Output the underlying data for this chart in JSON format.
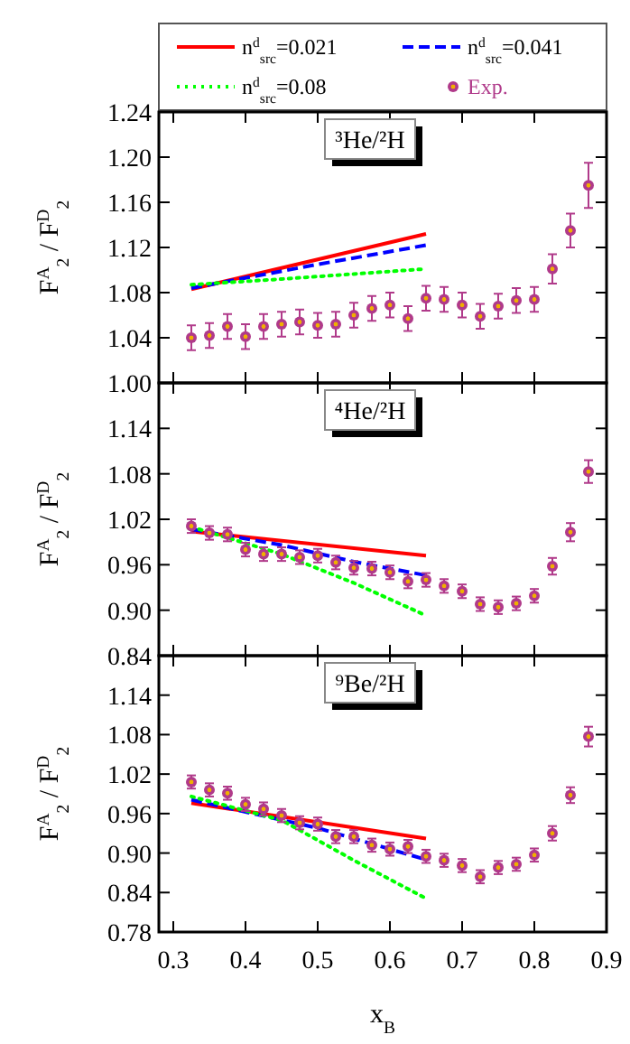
{
  "chart_data": [
    {
      "type": "line",
      "ylabel": "F$^{A}$$_{2}$ / F$^{D}$$_{2}$",
      "annotations": [
        "³He/²H"
      ],
      "xlim": [
        0.28,
        0.9
      ],
      "xticks": [
        0.3,
        0.4,
        0.5,
        0.6,
        0.7,
        0.8,
        0.9
      ],
      "ylim": [
        1.0,
        1.24
      ],
      "yticks": [
        {
          "value": 1.0,
          "label": "1.00"
        },
        1.04,
        1.08,
        1.12,
        1.16,
        {
          "value": 1.2,
          "label": "1.20"
        },
        1.24
      ],
      "tick_labels": "y",
      "legend": "top",
      "grid": false,
      "series": [
        {
          "name": "n$^{d}$$_{src}$=0.021",
          "color": "#ff0000",
          "line_style": "solid",
          "x": [
            0.325,
            0.65
          ],
          "values": [
            1.083,
            1.132
          ]
        },
        {
          "name": "n$^{d}$$_{src}$=0.041",
          "color": "#0000ff",
          "line_style": "dashed",
          "x": [
            0.325,
            0.5,
            0.65
          ],
          "values": [
            1.084,
            1.105,
            1.122
          ]
        },
        {
          "name": "n$^{d}$$_{src}$=0.08",
          "color": "#00ff00",
          "line_style": "dotted",
          "x": [
            0.325,
            0.45,
            0.65
          ],
          "values": [
            1.087,
            1.092,
            1.101
          ]
        },
        {
          "name": "Exp.",
          "type": "scatter",
          "color": "#b03a8a",
          "marker": "circle",
          "x": [
            0.325,
            0.35,
            0.375,
            0.4,
            0.425,
            0.45,
            0.475,
            0.5,
            0.525,
            0.55,
            0.575,
            0.6,
            0.625,
            0.65,
            0.675,
            0.7,
            0.725,
            0.75,
            0.775,
            0.8,
            0.825,
            0.85,
            0.875
          ],
          "values": [
            1.04,
            1.042,
            1.05,
            1.041,
            1.05,
            1.052,
            1.054,
            1.051,
            1.052,
            1.06,
            1.066,
            1.069,
            1.057,
            1.075,
            1.074,
            1.069,
            1.059,
            1.068,
            1.073,
            1.074,
            1.101,
            1.135,
            1.175
          ],
          "errors": [
            0.011,
            0.011,
            0.011,
            0.011,
            0.011,
            0.011,
            0.011,
            0.011,
            0.011,
            0.011,
            0.011,
            0.011,
            0.011,
            0.011,
            0.011,
            0.011,
            0.011,
            0.011,
            0.011,
            0.011,
            0.013,
            0.015,
            0.02
          ]
        }
      ]
    },
    {
      "type": "line",
      "ylabel": "F$^{A}$$_{2}$ / F$^{D}$$_{2}$",
      "annotations": [
        "⁴He/²H"
      ],
      "xlim": [
        0.28,
        0.9
      ],
      "xticks": [
        0.3,
        0.4,
        0.5,
        0.6,
        0.7,
        0.8,
        0.9
      ],
      "ylim": [
        0.84,
        1.2
      ],
      "yticks": [
        0.84,
        {
          "value": 0.9,
          "label": "0.90"
        },
        0.96,
        1.02,
        1.08,
        1.14
      ],
      "tick_labels": "y",
      "grid": false,
      "series": [
        {
          "color": "#ff0000",
          "line_style": "solid",
          "x": [
            0.325,
            0.65
          ],
          "values": [
            1.004,
            0.972
          ]
        },
        {
          "color": "#0000ff",
          "line_style": "dashed",
          "x": [
            0.325,
            0.45,
            0.55,
            0.65
          ],
          "values": [
            1.007,
            0.986,
            0.964,
            0.946
          ]
        },
        {
          "color": "#00ff00",
          "line_style": "dotted",
          "x": [
            0.325,
            0.45,
            0.55,
            0.65
          ],
          "values": [
            1.01,
            0.974,
            0.936,
            0.893
          ]
        },
        {
          "type": "scatter",
          "color": "#b03a8a",
          "marker": "circle",
          "x": [
            0.325,
            0.35,
            0.375,
            0.4,
            0.425,
            0.45,
            0.475,
            0.5,
            0.525,
            0.55,
            0.575,
            0.6,
            0.625,
            0.65,
            0.675,
            0.7,
            0.725,
            0.75,
            0.775,
            0.8,
            0.825,
            0.85,
            0.875
          ],
          "values": [
            1.011,
            1.002,
            1.0,
            0.98,
            0.974,
            0.974,
            0.97,
            0.972,
            0.963,
            0.956,
            0.955,
            0.95,
            0.938,
            0.94,
            0.932,
            0.925,
            0.908,
            0.904,
            0.909,
            0.919,
            0.958,
            1.003,
            1.083
          ],
          "errors": [
            0.009,
            0.009,
            0.009,
            0.009,
            0.009,
            0.009,
            0.009,
            0.009,
            0.009,
            0.009,
            0.009,
            0.009,
            0.009,
            0.009,
            0.009,
            0.009,
            0.009,
            0.009,
            0.009,
            0.009,
            0.011,
            0.012,
            0.015
          ]
        }
      ]
    },
    {
      "type": "line",
      "xlabel": "x$_{B}$",
      "ylabel": "F$^{A}$$_{2}$ / F$^{D}$$_{2}$",
      "annotations": [
        "⁹Be/²H"
      ],
      "xlim": [
        0.28,
        0.9
      ],
      "xticks": [
        0.3,
        0.4,
        0.5,
        0.6,
        0.7,
        0.8,
        0.9
      ],
      "ylim": [
        0.78,
        1.2
      ],
      "yticks": [
        0.78,
        0.84,
        {
          "value": 0.9,
          "label": "0.90"
        },
        0.96,
        1.02,
        1.08,
        1.14
      ],
      "grid": false,
      "series": [
        {
          "color": "#ff0000",
          "line_style": "solid",
          "x": [
            0.325,
            0.65
          ],
          "values": [
            0.976,
            0.922
          ]
        },
        {
          "color": "#0000ff",
          "line_style": "dashed",
          "x": [
            0.325,
            0.5,
            0.65
          ],
          "values": [
            0.981,
            0.938,
            0.89
          ]
        },
        {
          "color": "#00ff00",
          "line_style": "dotted",
          "x": [
            0.325,
            0.45,
            0.55,
            0.65
          ],
          "values": [
            0.986,
            0.95,
            0.889,
            0.831
          ]
        },
        {
          "type": "scatter",
          "color": "#b03a8a",
          "marker": "circle",
          "x": [
            0.325,
            0.35,
            0.375,
            0.4,
            0.425,
            0.45,
            0.475,
            0.5,
            0.525,
            0.55,
            0.575,
            0.6,
            0.625,
            0.65,
            0.675,
            0.7,
            0.725,
            0.75,
            0.775,
            0.8,
            0.825,
            0.85,
            0.875
          ],
          "values": [
            1.008,
            0.996,
            0.991,
            0.974,
            0.967,
            0.957,
            0.946,
            0.944,
            0.925,
            0.925,
            0.912,
            0.906,
            0.91,
            0.895,
            0.889,
            0.881,
            0.864,
            0.878,
            0.883,
            0.897,
            0.93,
            0.988,
            1.077
          ],
          "errors": [
            0.01,
            0.01,
            0.01,
            0.01,
            0.01,
            0.01,
            0.01,
            0.01,
            0.01,
            0.01,
            0.01,
            0.01,
            0.01,
            0.01,
            0.01,
            0.01,
            0.01,
            0.01,
            0.01,
            0.01,
            0.011,
            0.012,
            0.015
          ]
        }
      ]
    }
  ]
}
